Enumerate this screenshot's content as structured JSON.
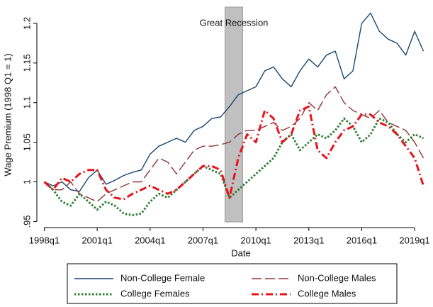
{
  "chart_data": {
    "type": "line",
    "y_label": "Wage Premium (1998 Q1 = 1)",
    "x_label": "Date",
    "x": [
      1998,
      1998.5,
      1999,
      1999.5,
      2000,
      2000.5,
      2001,
      2001.5,
      2002,
      2002.5,
      2003,
      2003.5,
      2004,
      2004.5,
      2005,
      2005.5,
      2006,
      2006.5,
      2007,
      2007.5,
      2008,
      2008.5,
      2009,
      2009.5,
      2010,
      2010.5,
      2011,
      2011.5,
      2012,
      2012.5,
      2013,
      2013.5,
      2014,
      2014.5,
      2015,
      2015.5,
      2016,
      2016.5,
      2017,
      2017.5,
      2018,
      2018.5,
      2019,
      2019.5
    ],
    "series": [
      {
        "name": "Non-College Female",
        "color": "#1a476f",
        "style": "solid",
        "values": [
          1.0,
          0.995,
          1.0,
          0.99,
          0.988,
          1.005,
          1.015,
          0.997,
          1.002,
          1.008,
          1.012,
          1.015,
          1.035,
          1.045,
          1.05,
          1.055,
          1.05,
          1.065,
          1.07,
          1.08,
          1.082,
          1.095,
          1.11,
          1.115,
          1.12,
          1.14,
          1.145,
          1.13,
          1.12,
          1.14,
          1.155,
          1.145,
          1.16,
          1.165,
          1.13,
          1.14,
          1.2,
          1.213,
          1.19,
          1.18,
          1.175,
          1.16,
          1.19,
          1.165
        ]
      },
      {
        "name": "Non-College Males",
        "color": "#90353b",
        "style": "longdash",
        "values": [
          1.0,
          0.99,
          0.99,
          1.0,
          0.985,
          0.98,
          0.975,
          0.985,
          0.99,
          0.995,
          1.0,
          1.0,
          1.015,
          1.03,
          1.025,
          1.01,
          1.025,
          1.04,
          1.045,
          1.045,
          1.047,
          1.05,
          1.06,
          1.065,
          1.065,
          1.07,
          1.075,
          1.065,
          1.07,
          1.08,
          1.1,
          1.09,
          1.11,
          1.12,
          1.1,
          1.09,
          1.085,
          1.08,
          1.09,
          1.075,
          1.07,
          1.065,
          1.05,
          1.03
        ]
      },
      {
        "name": "College Females",
        "color": "#2e7d32",
        "style": "dot",
        "values": [
          1.0,
          0.99,
          0.975,
          0.97,
          0.985,
          0.975,
          0.965,
          0.975,
          0.97,
          0.96,
          0.958,
          0.96,
          0.975,
          0.985,
          0.98,
          0.99,
          1.0,
          1.01,
          1.02,
          1.015,
          1.01,
          0.98,
          0.99,
          1.0,
          1.01,
          1.02,
          1.03,
          1.05,
          1.06,
          1.04,
          1.05,
          1.06,
          1.055,
          1.065,
          1.08,
          1.07,
          1.05,
          1.06,
          1.08,
          1.075,
          1.06,
          1.05,
          1.06,
          1.055
        ]
      },
      {
        "name": "College Males",
        "color": "#e8141c",
        "style": "dashdot",
        "values": [
          1.0,
          0.99,
          1.005,
          1.0,
          1.01,
          1.015,
          1.015,
          0.99,
          0.98,
          0.978,
          0.985,
          0.99,
          0.995,
          0.99,
          0.985,
          0.99,
          1.0,
          1.01,
          1.02,
          1.02,
          1.015,
          0.98,
          1.03,
          1.06,
          1.05,
          1.09,
          1.08,
          1.05,
          1.06,
          1.09,
          1.095,
          1.04,
          1.03,
          1.05,
          1.065,
          1.07,
          1.085,
          1.085,
          1.075,
          1.07,
          1.06,
          1.045,
          1.03,
          0.995
        ]
      }
    ],
    "shade": {
      "x": [
        2008.25,
        2009.25
      ],
      "label": "Great Recession",
      "color": "#c0c0c0"
    },
    "xlim": [
      1997.7,
      2019.8
    ],
    "xticks": [
      {
        "value": 1998,
        "label": "1998q1"
      },
      {
        "value": 2001,
        "label": "2001q1"
      },
      {
        "value": 2004,
        "label": "2004q1"
      },
      {
        "value": 2007,
        "label": "2007q1"
      },
      {
        "value": 2010,
        "label": "2010q1"
      },
      {
        "value": 2013,
        "label": "2013q1"
      },
      {
        "value": 2016,
        "label": "2016q1"
      },
      {
        "value": 2019,
        "label": "2019q1"
      }
    ],
    "ylim": [
      0.945,
      1.225
    ],
    "yticks": [
      {
        "value": 0.95,
        "label": ".95"
      },
      1,
      1.05,
      1.1,
      1.15,
      1.2
    ],
    "legend": "bottom"
  }
}
